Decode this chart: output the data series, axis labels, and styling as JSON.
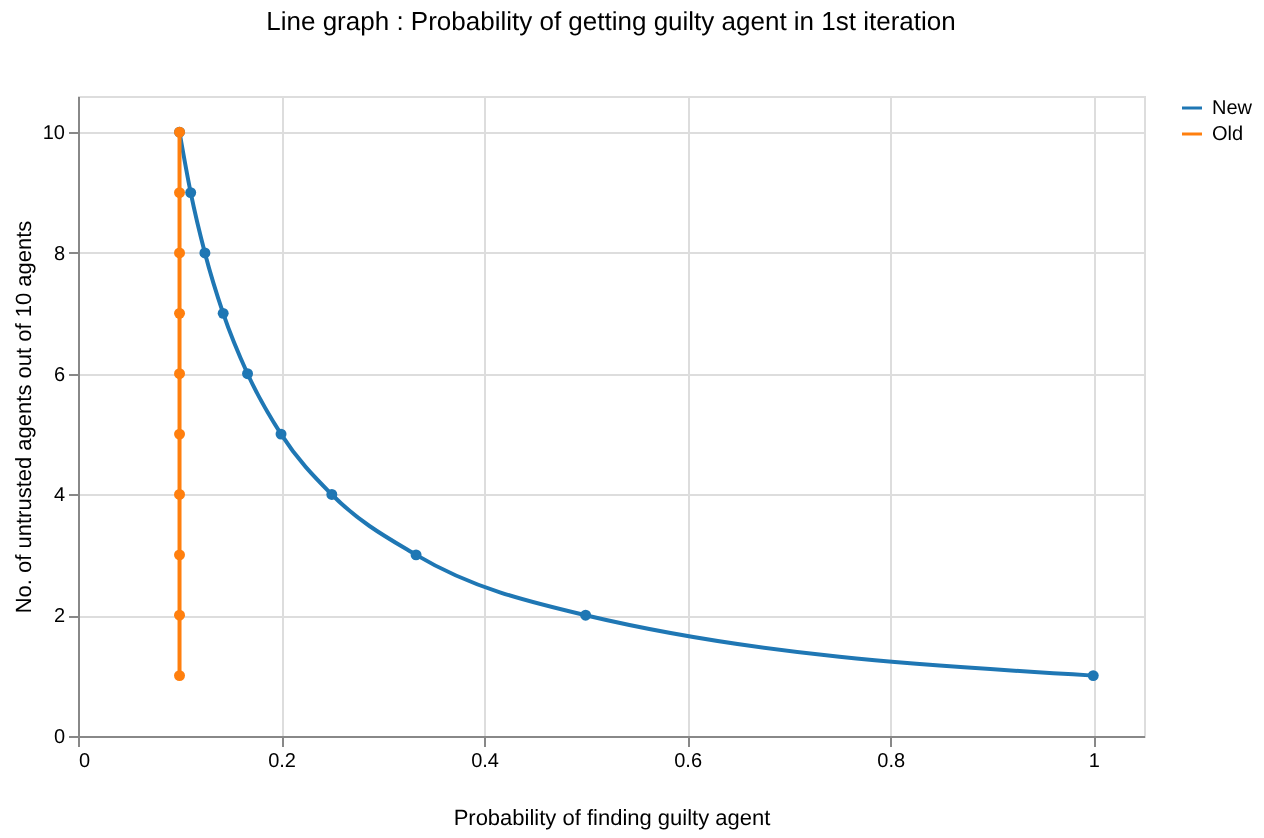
{
  "chart_data": {
    "type": "line",
    "title": "Line graph  : Probability of getting guilty agent in 1st iteration",
    "xlabel": "Probability of finding guilty agent",
    "ylabel": "No. of untrusted agents out of 10 agents",
    "series": [
      {
        "name": "New",
        "color": "#1f77b4",
        "x": [
          0.1,
          0.111,
          0.125,
          0.143,
          0.167,
          0.2,
          0.25,
          0.333,
          0.5,
          1
        ],
        "values": [
          10,
          9,
          8,
          7,
          6,
          5,
          4,
          3,
          2,
          1
        ]
      },
      {
        "name": "Old",
        "color": "#ff7f0e",
        "x": [
          0.1,
          0.1,
          0.1,
          0.1,
          0.1,
          0.1,
          0.1,
          0.1,
          0.1,
          0.1
        ],
        "values": [
          1,
          2,
          3,
          4,
          5,
          6,
          7,
          8,
          9,
          10
        ]
      }
    ],
    "xlim": [
      0,
      1.05
    ],
    "xticks": [
      0,
      0.2,
      0.4,
      0.6,
      0.8,
      1
    ],
    "ylim": [
      0,
      10.6
    ],
    "yticks": [
      0,
      2,
      4,
      6,
      8,
      10
    ],
    "grid": true,
    "legend": "top right",
    "marker": "circle",
    "line_style": "solid"
  }
}
